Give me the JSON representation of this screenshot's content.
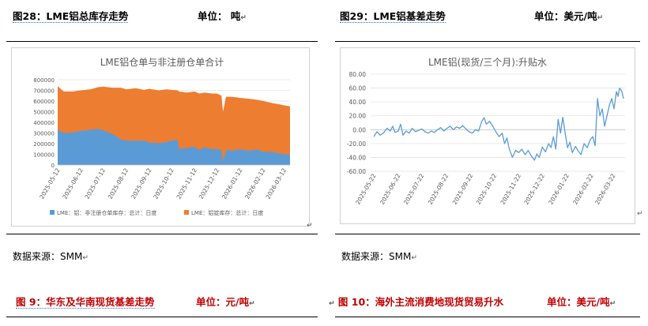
{
  "captions": {
    "fig28_title": "图28：LME铝总库存走势",
    "fig28_unit": "单位：  吨",
    "fig29_title": "图29：LME铝基差走势",
    "fig29_unit": "单位：美元/吨",
    "fig9_title": "图 9：华东及华南现货基差走势",
    "fig9_unit": "单位：元/吨",
    "fig10_title": "图 10：海外主流消费地现货贸易升水",
    "fig10_unit": "单位：美元/吨"
  },
  "sources": {
    "left": "数据来源：SMM",
    "right": "数据来源：SMM"
  },
  "para_mark": "↵",
  "colors": {
    "blue": "#5b9bd5",
    "orange": "#ed7d31",
    "line": "#5b9bd5",
    "red_caption": "#c00000"
  },
  "chart_data": [
    {
      "type": "area",
      "title": "LME铝仓单与非注册仓单合计",
      "stacked": true,
      "x_ticks": [
        "2025-05-12",
        "2025-06-12",
        "2025-07-12",
        "2025-08-12",
        "2025-09-12",
        "2025-10-12",
        "2025-11-12",
        "2025-12-12",
        "2026-01-12",
        "2026-02-12",
        "2026-03-12"
      ],
      "y_ticks": [
        "0",
        "100000",
        "200000",
        "300000",
        "400000",
        "500000",
        "600000",
        "700000",
        "800000"
      ],
      "ylim": [
        0,
        800000
      ],
      "legend_position": "bottom",
      "series": [
        {
          "name": "LME：铝：非注册仓单库存：总计：日度",
          "color": "#5b9bd5",
          "points": [
            [
              "2025-05-12",
              330000
            ],
            [
              "2025-05-20",
              300000
            ],
            [
              "2025-06-01",
              305000
            ],
            [
              "2025-06-12",
              320000
            ],
            [
              "2025-06-25",
              330000
            ],
            [
              "2025-07-05",
              340000
            ],
            [
              "2025-07-12",
              325000
            ],
            [
              "2025-07-25",
              290000
            ],
            [
              "2025-08-05",
              240000
            ],
            [
              "2025-08-12",
              230000
            ],
            [
              "2025-08-25",
              228000
            ],
            [
              "2025-09-05",
              230000
            ],
            [
              "2025-09-12",
              210000
            ],
            [
              "2025-09-25",
              205000
            ],
            [
              "2025-10-05",
              215000
            ],
            [
              "2025-10-12",
              230000
            ],
            [
              "2025-10-20",
              235000
            ],
            [
              "2025-10-22",
              150000
            ],
            [
              "2025-11-01",
              160000
            ],
            [
              "2025-11-12",
              170000
            ],
            [
              "2025-11-18",
              140000
            ],
            [
              "2025-11-25",
              165000
            ],
            [
              "2025-12-05",
              150000
            ],
            [
              "2025-12-12",
              150000
            ],
            [
              "2025-12-18",
              140000
            ],
            [
              "2025-12-20",
              30000
            ],
            [
              "2025-12-24",
              140000
            ],
            [
              "2026-01-01",
              135000
            ],
            [
              "2026-01-12",
              145000
            ],
            [
              "2026-01-25",
              135000
            ],
            [
              "2026-02-05",
              145000
            ],
            [
              "2026-02-12",
              125000
            ],
            [
              "2026-02-25",
              120000
            ],
            [
              "2026-03-05",
              110000
            ],
            [
              "2026-03-12",
              100000
            ],
            [
              "2026-03-20",
              100000
            ]
          ]
        },
        {
          "name": "LME：铝锭库存：总计：日度",
          "color": "#ed7d31",
          "points": [
            [
              "2025-05-12",
              740000
            ],
            [
              "2025-05-20",
              690000
            ],
            [
              "2025-06-01",
              690000
            ],
            [
              "2025-06-12",
              700000
            ],
            [
              "2025-06-25",
              710000
            ],
            [
              "2025-07-05",
              730000
            ],
            [
              "2025-07-12",
              735000
            ],
            [
              "2025-07-25",
              725000
            ],
            [
              "2025-08-05",
              725000
            ],
            [
              "2025-08-12",
              710000
            ],
            [
              "2025-08-25",
              720000
            ],
            [
              "2025-09-05",
              705000
            ],
            [
              "2025-09-12",
              715000
            ],
            [
              "2025-09-25",
              700000
            ],
            [
              "2025-10-05",
              710000
            ],
            [
              "2025-10-12",
              705000
            ],
            [
              "2025-10-20",
              700000
            ],
            [
              "2025-10-22",
              690000
            ],
            [
              "2025-11-01",
              680000
            ],
            [
              "2025-11-12",
              690000
            ],
            [
              "2025-11-18",
              670000
            ],
            [
              "2025-11-25",
              680000
            ],
            [
              "2025-12-05",
              670000
            ],
            [
              "2025-12-12",
              670000
            ],
            [
              "2025-12-18",
              650000
            ],
            [
              "2025-12-20",
              500000
            ],
            [
              "2025-12-24",
              640000
            ],
            [
              "2026-01-01",
              640000
            ],
            [
              "2026-01-12",
              630000
            ],
            [
              "2026-01-25",
              620000
            ],
            [
              "2026-02-05",
              610000
            ],
            [
              "2026-02-12",
              600000
            ],
            [
              "2026-02-25",
              580000
            ],
            [
              "2026-03-05",
              570000
            ],
            [
              "2026-03-12",
              560000
            ],
            [
              "2026-03-20",
              550000
            ]
          ]
        }
      ]
    },
    {
      "type": "line",
      "title": "LME铝(现货/三个月):升贴水",
      "x_ticks": [
        "2025-05-22",
        "2025-06-22",
        "2025-07-22",
        "2025-08-22",
        "2025-09-22",
        "2025-10-22",
        "2025-11-22",
        "2025-12-22",
        "2026-01-22",
        "2026-02-22",
        "2026-03-22"
      ],
      "y_ticks": [
        "-60.00",
        "-40.00",
        "-20.00",
        "0.00",
        "20.00",
        "40.00",
        "60.00",
        "80.00"
      ],
      "ylim": [
        -60,
        80
      ],
      "series": [
        {
          "name": "",
          "color": "#5b9bd5",
          "points": [
            [
              "2025-05-22",
              -10
            ],
            [
              "2025-05-26",
              -3
            ],
            [
              "2025-05-30",
              -8
            ],
            [
              "2025-06-03",
              -5
            ],
            [
              "2025-06-08",
              2
            ],
            [
              "2025-06-12",
              -2
            ],
            [
              "2025-06-15",
              5
            ],
            [
              "2025-06-18",
              -4
            ],
            [
              "2025-06-22",
              -2
            ],
            [
              "2025-06-25",
              8
            ],
            [
              "2025-06-28",
              -8
            ],
            [
              "2025-07-02",
              -2
            ],
            [
              "2025-07-06",
              -5
            ],
            [
              "2025-07-10",
              2
            ],
            [
              "2025-07-14",
              -3
            ],
            [
              "2025-07-18",
              -1
            ],
            [
              "2025-07-22",
              1
            ],
            [
              "2025-07-26",
              -3
            ],
            [
              "2025-07-30",
              -5
            ],
            [
              "2025-08-03",
              -2
            ],
            [
              "2025-08-07",
              -4
            ],
            [
              "2025-08-11",
              0
            ],
            [
              "2025-08-15",
              3
            ],
            [
              "2025-08-19",
              -2
            ],
            [
              "2025-08-23",
              2
            ],
            [
              "2025-08-27",
              5
            ],
            [
              "2025-08-31",
              0
            ],
            [
              "2025-09-04",
              4
            ],
            [
              "2025-09-08",
              2
            ],
            [
              "2025-09-12",
              6
            ],
            [
              "2025-09-16",
              1
            ],
            [
              "2025-09-20",
              -3
            ],
            [
              "2025-09-24",
              -5
            ],
            [
              "2025-09-28",
              0
            ],
            [
              "2025-10-02",
              -2
            ],
            [
              "2025-10-06",
              12
            ],
            [
              "2025-10-09",
              17
            ],
            [
              "2025-10-12",
              8
            ],
            [
              "2025-10-16",
              12
            ],
            [
              "2025-10-20",
              5
            ],
            [
              "2025-10-24",
              -3
            ],
            [
              "2025-10-28",
              -10
            ],
            [
              "2025-11-01",
              -5
            ],
            [
              "2025-11-04",
              -20
            ],
            [
              "2025-11-07",
              -12
            ],
            [
              "2025-11-10",
              -28
            ],
            [
              "2025-11-14",
              -40
            ],
            [
              "2025-11-18",
              -30
            ],
            [
              "2025-11-22",
              -33
            ],
            [
              "2025-11-26",
              -28
            ],
            [
              "2025-11-30",
              -36
            ],
            [
              "2025-12-04",
              -30
            ],
            [
              "2025-12-08",
              -38
            ],
            [
              "2025-12-12",
              -44
            ],
            [
              "2025-12-15",
              -35
            ],
            [
              "2025-12-18",
              -40
            ],
            [
              "2025-12-22",
              -25
            ],
            [
              "2025-12-26",
              -32
            ],
            [
              "2025-12-30",
              -20
            ],
            [
              "2026-01-02",
              -26
            ],
            [
              "2026-01-05",
              -10
            ],
            [
              "2026-01-08",
              -28
            ],
            [
              "2026-01-11",
              15
            ],
            [
              "2026-01-14",
              -5
            ],
            [
              "2026-01-17",
              18
            ],
            [
              "2026-01-20",
              -5
            ],
            [
              "2026-01-23",
              -26
            ],
            [
              "2026-01-26",
              -18
            ],
            [
              "2026-01-29",
              -33
            ],
            [
              "2026-02-02",
              -24
            ],
            [
              "2026-02-05",
              -30
            ],
            [
              "2026-02-09",
              -36
            ],
            [
              "2026-02-13",
              -20
            ],
            [
              "2026-02-17",
              -26
            ],
            [
              "2026-02-21",
              -14
            ],
            [
              "2026-02-24",
              -10
            ],
            [
              "2026-02-27",
              -23
            ],
            [
              "2026-03-02",
              45
            ],
            [
              "2026-03-05",
              20
            ],
            [
              "2026-03-08",
              30
            ],
            [
              "2026-03-11",
              5
            ],
            [
              "2026-03-14",
              20
            ],
            [
              "2026-03-17",
              35
            ],
            [
              "2026-03-20",
              45
            ],
            [
              "2026-03-23",
              30
            ],
            [
              "2026-03-26",
              55
            ],
            [
              "2026-03-28",
              48
            ],
            [
              "2026-03-30",
              60
            ],
            [
              "2026-04-02",
              55
            ],
            [
              "2026-04-04",
              45
            ]
          ]
        }
      ]
    }
  ]
}
